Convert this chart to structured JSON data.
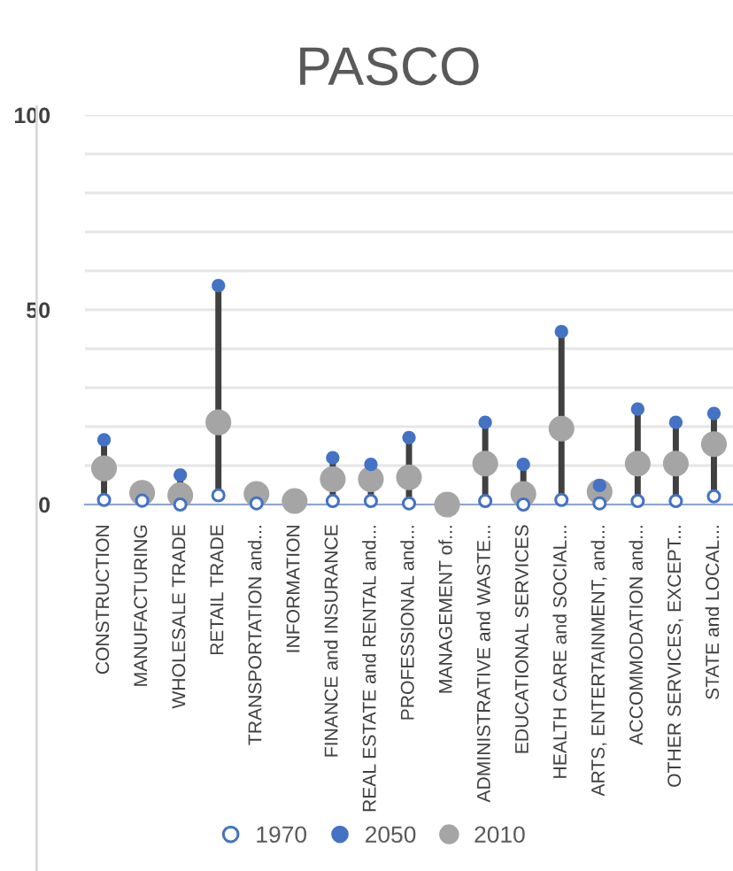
{
  "chart_data": {
    "type": "scatter",
    "title": "PASCO",
    "categories": [
      "CONSTRUCTION",
      "MANUFACTURING",
      "WHOLESALE TRADE",
      "RETAIL TRADE",
      "TRANSPORTATION and...",
      "INFORMATION",
      "FINANCE and INSURANCE",
      "REAL ESTATE and RENTAL and...",
      "PROFESSIONAL and...",
      "MANAGEMENT of...",
      "ADMINISTRATIVE and WASTE...",
      "EDUCATIONAL SERVICES",
      "HEALTH CARE and SOCIAL...",
      "ARTS, ENTERTAINMENT, and...",
      "ACCOMMODATION and...",
      "OTHER SERVICES, EXCEPT...",
      "STATE and LOCAL..."
    ],
    "series": [
      {
        "name": "1970",
        "color": "#4472c4",
        "values": [
          1.2,
          1,
          0,
          2.4,
          0.3,
          null,
          0.9,
          0.9,
          0.3,
          null,
          0.9,
          0,
          1.2,
          0.3,
          0.9,
          0.9,
          2.1
        ]
      },
      {
        "name": "2050",
        "color": "#4472c4",
        "values": [
          16.6,
          null,
          7.6,
          56.2,
          null,
          null,
          12,
          10.3,
          17.2,
          null,
          21.1,
          10.3,
          44.4,
          4.9,
          24.5,
          21.1,
          23.4
        ]
      },
      {
        "name": "2010",
        "color": "#a5a5a5",
        "values": [
          9.3,
          3,
          2.4,
          21.1,
          2.7,
          0.9,
          6.5,
          6.5,
          7,
          0,
          10.5,
          2.7,
          19.5,
          3.3,
          10.5,
          10.5,
          15.5
        ]
      }
    ],
    "ylim": [
      0,
      100
    ],
    "yticks": [
      0,
      {
        "value": 10,
        "label": null
      },
      {
        "value": 20,
        "label": null
      },
      {
        "value": 30,
        "label": null
      },
      {
        "value": 40,
        "label": null
      },
      50,
      {
        "value": 60,
        "label": null
      },
      {
        "value": 70,
        "label": null
      },
      {
        "value": 80,
        "label": null
      },
      {
        "value": 90,
        "label": null
      },
      100
    ],
    "grid": "y",
    "legend": "bottom",
    "marker": "circle"
  }
}
